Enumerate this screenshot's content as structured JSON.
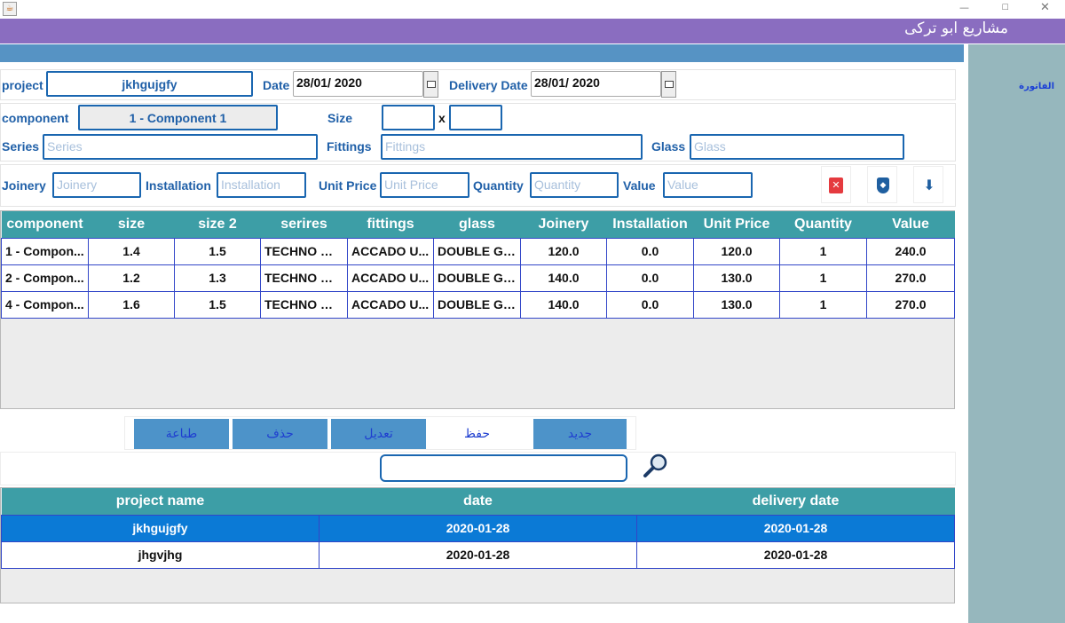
{
  "app": {
    "title": "مشاريع ابو تركى",
    "sidebar_link": "الفاتورة"
  },
  "form": {
    "project_label": "project",
    "project_value": "jkhgujgfy",
    "date_label": "Date",
    "date_value": "28/01/ 2020",
    "delivery_label": "Delivery Date",
    "delivery_value": "28/01/ 2020",
    "component_label": "component",
    "component_value": "1 - Component  1",
    "size_label": "Size",
    "x_label": "x",
    "series_label": "Series",
    "series_placeholder": "Series",
    "fittings_label": "Fittings",
    "fittings_placeholder": "Fittings",
    "glass_label": "Glass",
    "glass_placeholder": "Glass",
    "joinery_label": "Joinery",
    "joinery_placeholder": "Joinery",
    "installation_label": "Installation",
    "installation_placeholder": "Installation",
    "unitprice_label": "Unit Price",
    "unitprice_placeholder": "Unit Price",
    "quantity_label": "Quantity",
    "quantity_placeholder": "Quantity",
    "value_label": "Value",
    "value_placeholder": "Value"
  },
  "toolbar_icons": {
    "delete": "x-icon",
    "shield": "shield-icon",
    "download": "download-icon"
  },
  "components_table": {
    "headers": [
      "component",
      "size",
      "size 2",
      "serires",
      "fittings",
      "glass",
      "Joinery",
      "Installation",
      "Unit Price",
      "Quantity",
      "Value"
    ],
    "rows": [
      [
        "1 - Compon...",
        "1.4",
        "1.5",
        "TECHNO WI...",
        "ACCADO U...",
        "DOUBLE GL...",
        "120.0",
        "0.0",
        "120.0",
        "1",
        "240.0"
      ],
      [
        "2 - Compon...",
        "1.2",
        "1.3",
        "TECHNO WI...",
        "ACCADO U...",
        "DOUBLE GL...",
        "140.0",
        "0.0",
        "130.0",
        "1",
        "270.0"
      ],
      [
        "4 - Compon...",
        "1.6",
        "1.5",
        "TECHNO WI...",
        "ACCADO U...",
        "DOUBLE GL...",
        "140.0",
        "0.0",
        "130.0",
        "1",
        "270.0"
      ]
    ]
  },
  "actions": {
    "print": "طباعة",
    "delete": "حذف",
    "edit": "تعديل",
    "save": "حفظ",
    "new": "جديد"
  },
  "search": {
    "value": ""
  },
  "projects_table": {
    "headers": [
      "project name",
      "date",
      "delivery date"
    ],
    "rows": [
      [
        "jkhgujgfy",
        "2020-01-28",
        "2020-01-28"
      ],
      [
        "jhgvjhg",
        "2020-01-28",
        "2020-01-28"
      ]
    ],
    "selected_index": 0
  },
  "colors": {
    "header": "#8a6dc0",
    "bar": "#5693c4",
    "table_header": "#3d9ea6",
    "selected_row": "#0b7ad6",
    "sidebar": "#96b7bd"
  }
}
